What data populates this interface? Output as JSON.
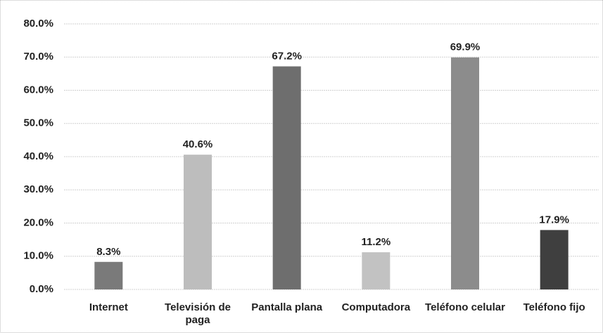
{
  "chart_data": {
    "type": "bar",
    "categories": [
      "Internet",
      "Televisión de paga",
      "Pantalla plana",
      "Computadora",
      "Teléfono celular",
      "Teléfono fijo"
    ],
    "values": [
      8.3,
      40.6,
      67.2,
      11.2,
      69.9,
      17.9
    ],
    "value_labels": [
      "8.3%",
      "40.6%",
      "67.2%",
      "11.2%",
      "69.9%",
      "17.9%"
    ],
    "colors": [
      "#7a7a7a",
      "#bdbdbd",
      "#6e6e6e",
      "#c2c2c2",
      "#8c8c8c",
      "#3f3f3f"
    ],
    "ylim": [
      0,
      80
    ],
    "yticks": [
      {
        "value": 0,
        "label": "0.0%"
      },
      {
        "value": 10,
        "label": "10.0%"
      },
      {
        "value": 20,
        "label": "20.0%"
      },
      {
        "value": 30,
        "label": "30.0%"
      },
      {
        "value": 40,
        "label": "40.0%"
      },
      {
        "value": 50,
        "label": "50.0%"
      },
      {
        "value": 60,
        "label": "60.0%"
      },
      {
        "value": 70,
        "label": "70.0%"
      },
      {
        "value": 80,
        "label": "80.0%"
      }
    ],
    "grid": true
  }
}
